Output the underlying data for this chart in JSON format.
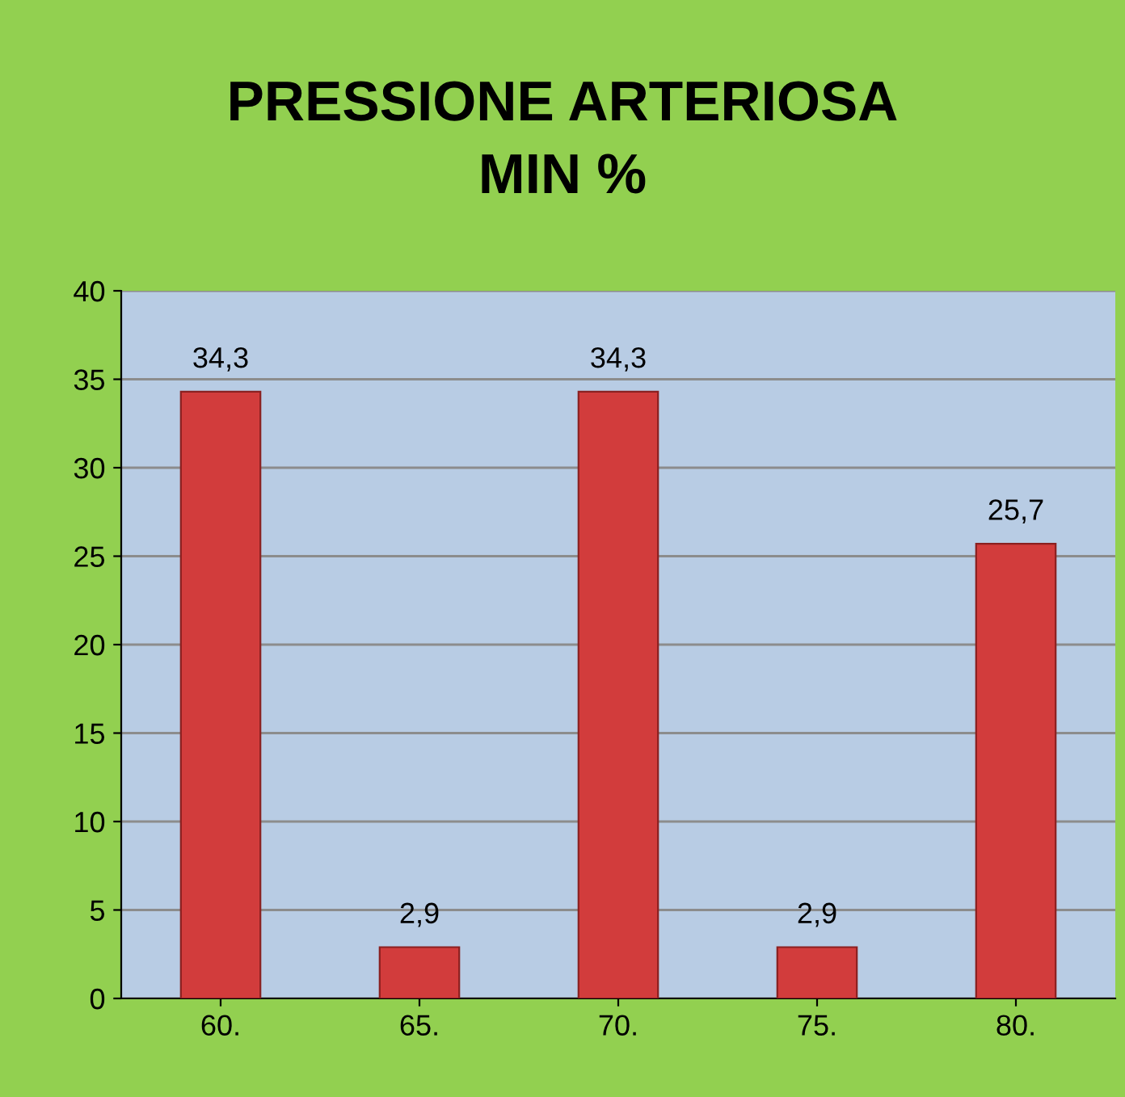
{
  "chart_data": {
    "type": "bar",
    "title": "PRESSIONE ARTERIOSA\nMIN %",
    "categories": [
      "60.",
      "65.",
      "70.",
      "75.",
      "80."
    ],
    "values": [
      34.3,
      2.9,
      34.3,
      2.9,
      25.7
    ],
    "value_labels": [
      "34,3",
      "2,9",
      "34,3",
      "2,9",
      "25,7"
    ],
    "color": "#d23c3c",
    "ylim": [
      0,
      40
    ],
    "yticks": [
      0,
      5,
      10,
      15,
      20,
      25,
      30,
      35,
      40
    ],
    "grid": "y",
    "legend": false
  }
}
